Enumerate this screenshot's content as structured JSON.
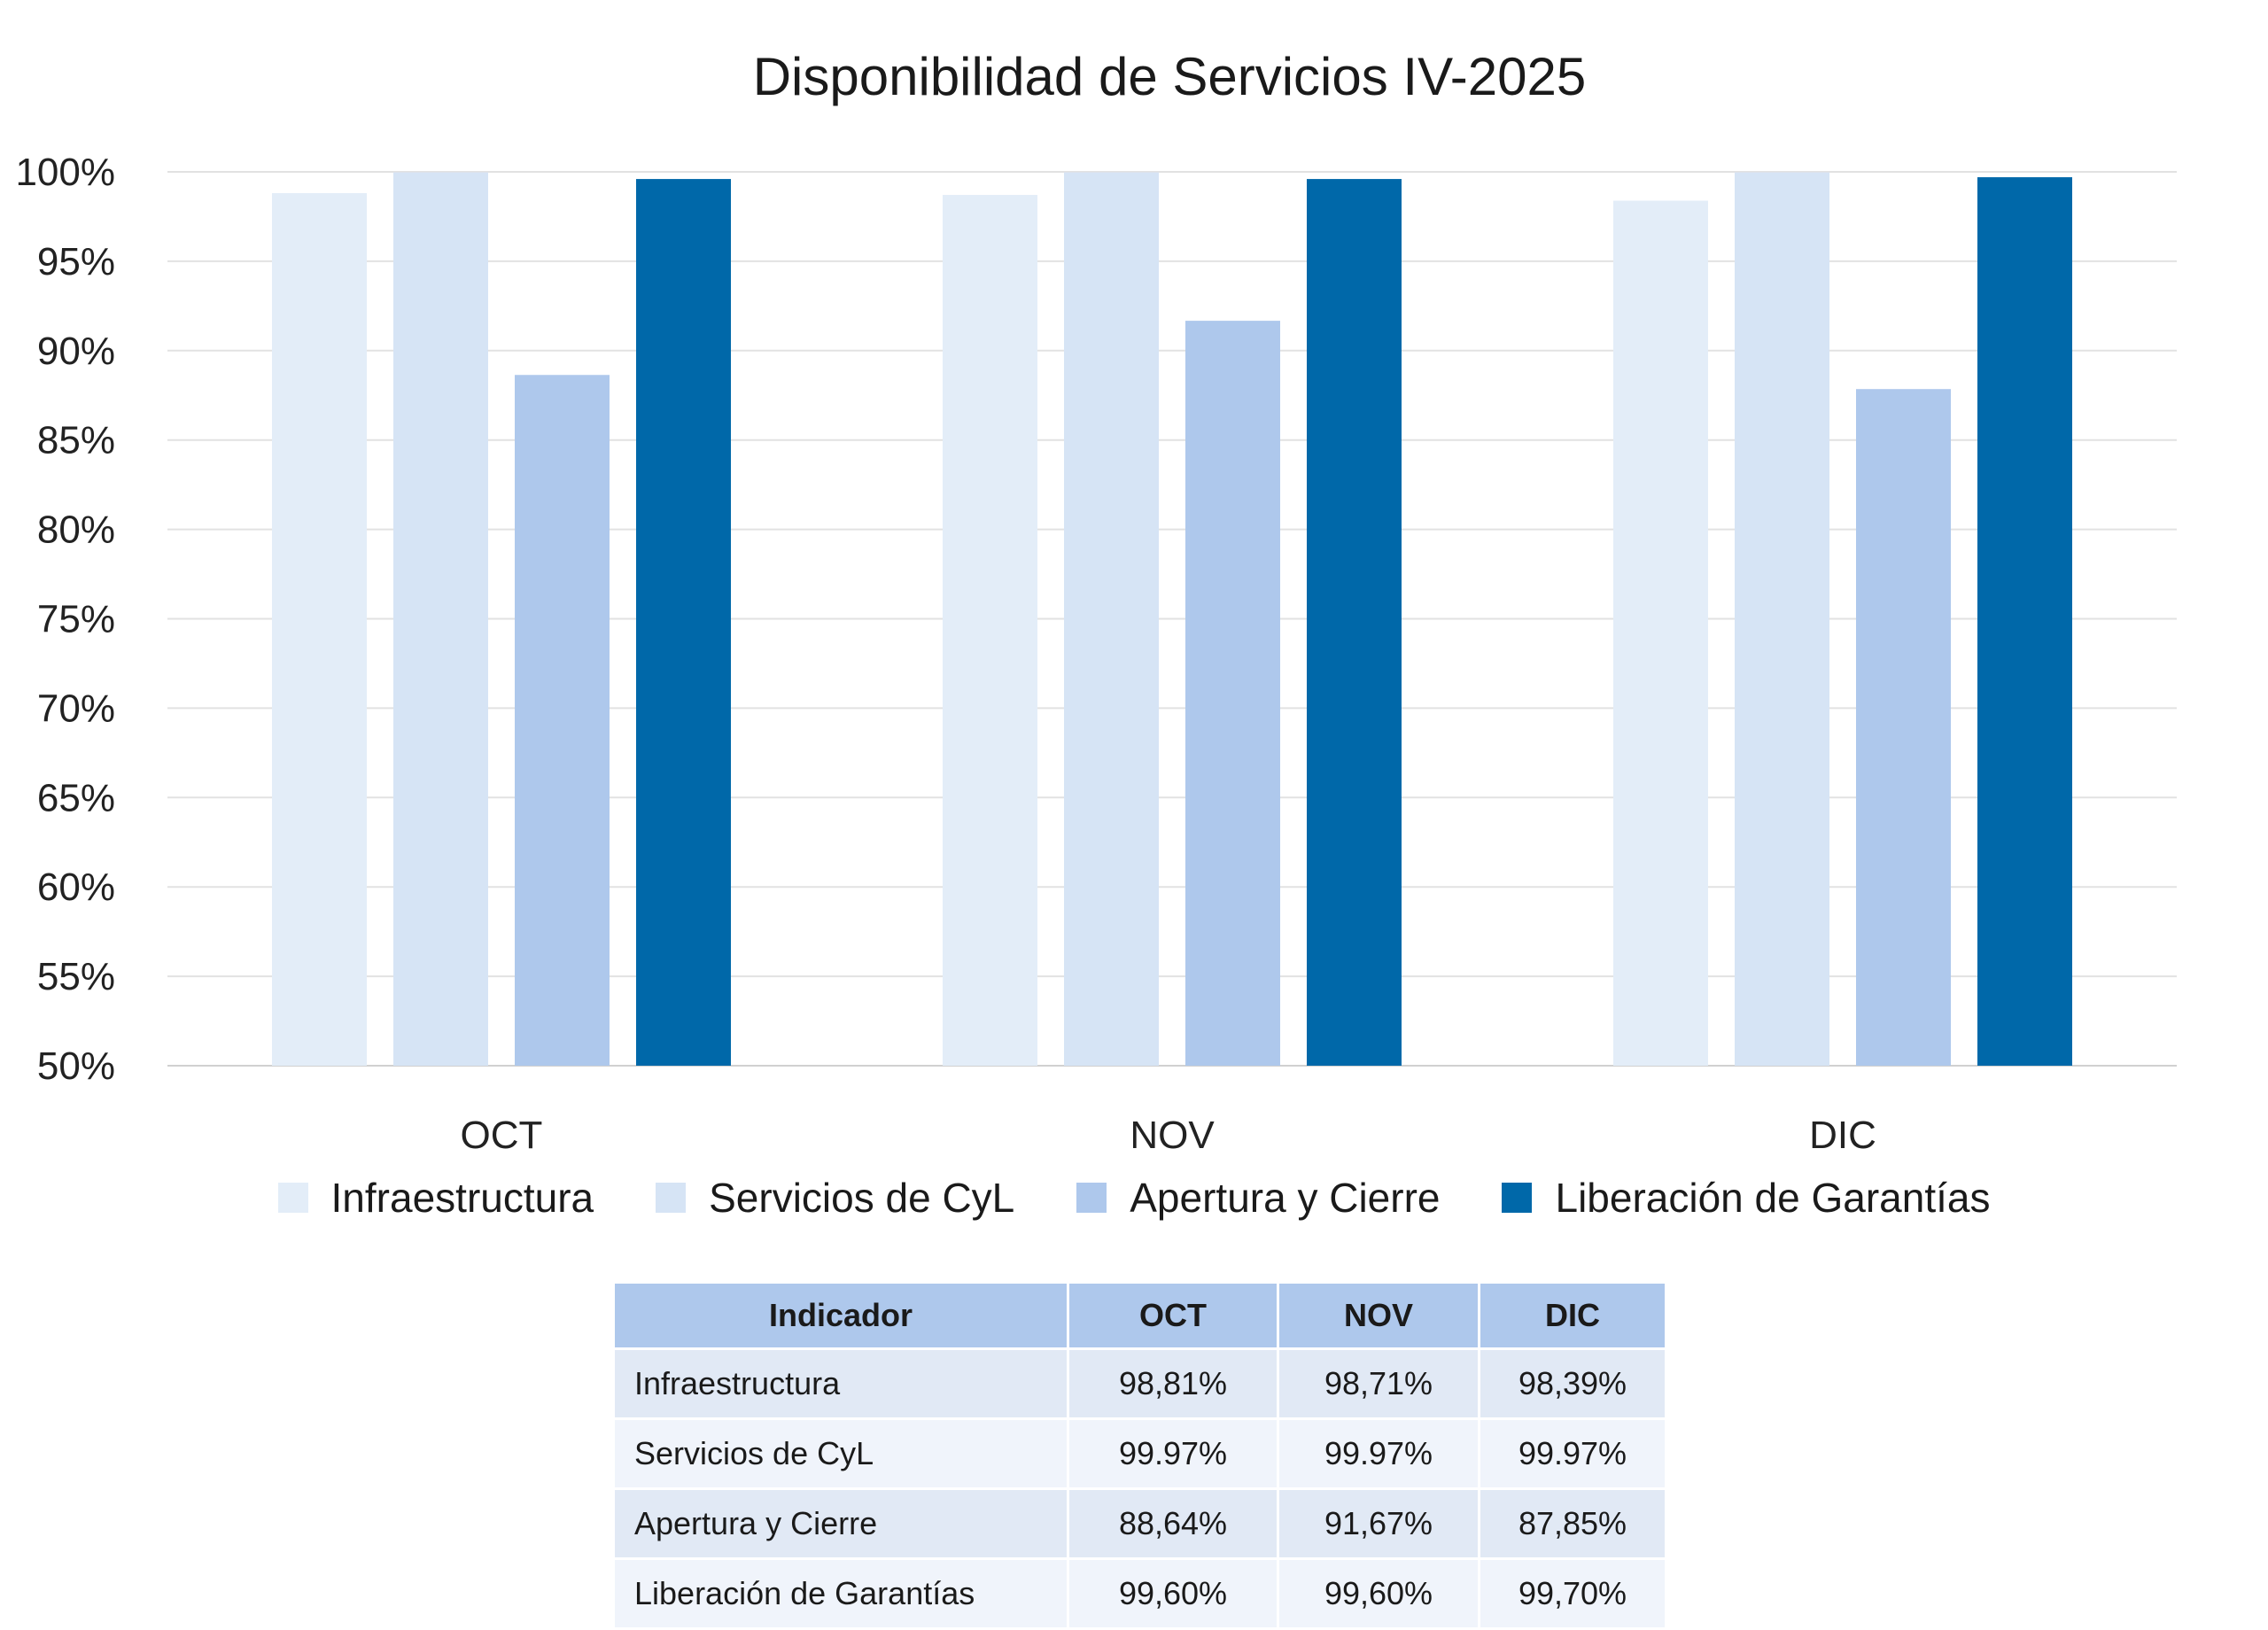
{
  "chart_data": {
    "type": "bar",
    "title": "Disponibilidad de Servicios IV-2025",
    "categories": [
      "OCT",
      "NOV",
      "DIC"
    ],
    "ylim": [
      50,
      100
    ],
    "yticks": [
      "50%",
      "55%",
      "60%",
      "65%",
      "70%",
      "75%",
      "80%",
      "85%",
      "90%",
      "95%",
      "100%"
    ],
    "grid": true,
    "legend_position": "bottom",
    "series": [
      {
        "name": "Infraestructura",
        "values": [
          98.81,
          98.71,
          98.39
        ],
        "color": "#e3edf8"
      },
      {
        "name": "Servicios de CyL",
        "values": [
          99.97,
          99.97,
          99.97
        ],
        "color": "#d6e4f5"
      },
      {
        "name": "Apertura y Cierre",
        "values": [
          88.64,
          91.67,
          87.85
        ],
        "color": "#aec8ec"
      },
      {
        "name": "Liberación de Garantías",
        "values": [
          99.6,
          99.6,
          99.7
        ],
        "color": "#0068a9"
      }
    ]
  },
  "table": {
    "headers": [
      "Indicador",
      "OCT",
      "NOV",
      "DIC"
    ],
    "rows": [
      [
        "Infraestructura",
        "98,81%",
        "98,71%",
        "98,39%"
      ],
      [
        "Servicios de CyL",
        "99.97%",
        "99.97%",
        "99.97%"
      ],
      [
        "Apertura y Cierre",
        "88,64%",
        "91,67%",
        "87,85%"
      ],
      [
        "Liberación de Garantías",
        "99,60%",
        "99,60%",
        "99,70%"
      ]
    ]
  }
}
